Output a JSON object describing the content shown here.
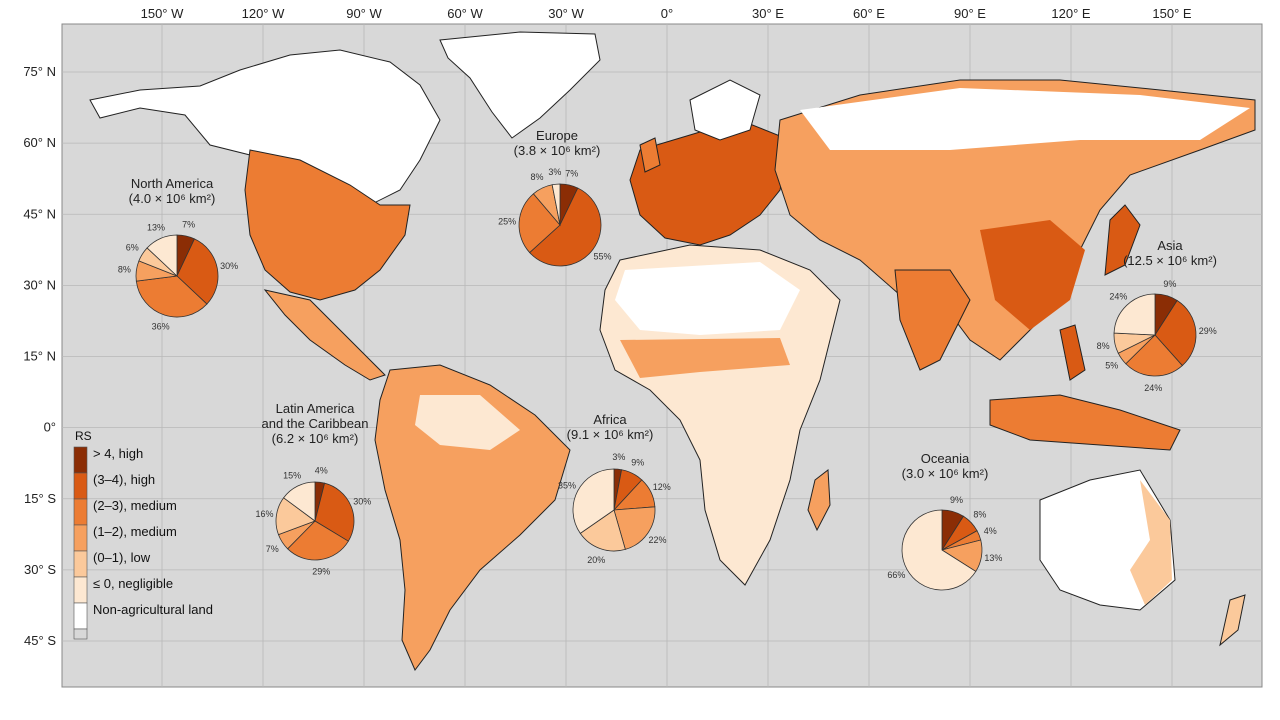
{
  "map": {
    "lon_ticks": [
      "150° W",
      "120° W",
      "90° W",
      "60° W",
      "30° W",
      "0°",
      "30° E",
      "60° E",
      "90° E",
      "120° E",
      "150° E"
    ],
    "lon_values": [
      -150,
      -120,
      -90,
      -60,
      -30,
      0,
      30,
      60,
      90,
      120,
      150
    ],
    "lat_ticks": [
      "75° N",
      "60° N",
      "45° N",
      "30° N",
      "15° N",
      "0°",
      "15° S",
      "30° S",
      "45° S"
    ],
    "lat_values": [
      75,
      60,
      45,
      30,
      15,
      0,
      -15,
      -30,
      -45
    ],
    "colors": {
      "ocean": "#d8d8d8",
      "non_agri": "#ffffff",
      "negligible": "#fde8d2",
      "low": "#fbc99b",
      "medium_1_2": "#f6a05f",
      "medium_2_3": "#ec7c33",
      "high_3_4": "#d95a14",
      "high_4": "#8b2d05"
    }
  },
  "legend": {
    "title": "RS",
    "items": [
      {
        "label": "> 4, high",
        "color": "#8b2d05"
      },
      {
        "label": "(3–4), high",
        "color": "#d95a14"
      },
      {
        "label": "(2–3), medium",
        "color": "#ec7c33"
      },
      {
        "label": "(1–2), medium",
        "color": "#f6a05f"
      },
      {
        "label": "(0–1), low",
        "color": "#fbc99b"
      },
      {
        "label": "≤ 0, negligible",
        "color": "#fde8d2"
      },
      {
        "label": "Non-agricultural land",
        "color": "#ffffff"
      }
    ]
  },
  "regions": [
    {
      "name": "North America",
      "area": "(4.0 × 10⁶ km²)",
      "slices": [
        {
          "p": 7,
          "label": "7%"
        },
        {
          "p": 30,
          "label": "30%"
        },
        {
          "p": 36,
          "label": "36%"
        },
        {
          "p": 8,
          "label": "8%"
        },
        {
          "p": 6,
          "label": "6%"
        },
        {
          "p": 13,
          "label": "13%"
        }
      ]
    },
    {
      "name": "Europe",
      "area": "(3.8 × 10⁶ km²)",
      "slices": [
        {
          "p": 7,
          "label": "7%"
        },
        {
          "p": 55,
          "label": "55%"
        },
        {
          "p": 25,
          "label": "25%"
        },
        {
          "p": 8,
          "label": "8%"
        },
        {
          "p": 3,
          "label": "3%"
        }
      ]
    },
    {
      "name": "Asia",
      "area": "(12.5 × 10⁶ km²)",
      "slices": [
        {
          "p": 9,
          "label": "9%"
        },
        {
          "p": 29,
          "label": "29%"
        },
        {
          "p": 24,
          "label": "24%"
        },
        {
          "p": 5,
          "label": "5%"
        },
        {
          "p": 8,
          "label": "8%"
        },
        {
          "p": 24,
          "label": "24%"
        }
      ]
    },
    {
      "name": "Latin America",
      "name2": "and the Caribbean",
      "area": "(6.2 × 10⁶ km²)",
      "slices": [
        {
          "p": 4,
          "label": "4%"
        },
        {
          "p": 30,
          "label": "30%"
        },
        {
          "p": 29,
          "label": "29%"
        },
        {
          "p": 7,
          "label": "7%"
        },
        {
          "p": 16,
          "label": "16%"
        },
        {
          "p": 15,
          "label": "15%"
        }
      ]
    },
    {
      "name": "Africa",
      "area": "(9.1 × 10⁶ km²)",
      "slices": [
        {
          "p": 3,
          "label": "3%"
        },
        {
          "p": 9,
          "label": "9%"
        },
        {
          "p": 12,
          "label": "12%"
        },
        {
          "p": 22,
          "label": "22%"
        },
        {
          "p": 20,
          "label": "20%"
        },
        {
          "p": 35,
          "label": "35%"
        }
      ]
    },
    {
      "name": "Oceania",
      "area": "(3.0 × 10⁶ km²)",
      "slices": [
        {
          "p": 9,
          "label": "9%"
        },
        {
          "p": 8,
          "label": "8%"
        },
        {
          "p": 4,
          "label": "4%"
        },
        {
          "p": 13,
          "label": "13%"
        },
        {
          "p": 66,
          "label": "66%"
        }
      ]
    }
  ]
}
